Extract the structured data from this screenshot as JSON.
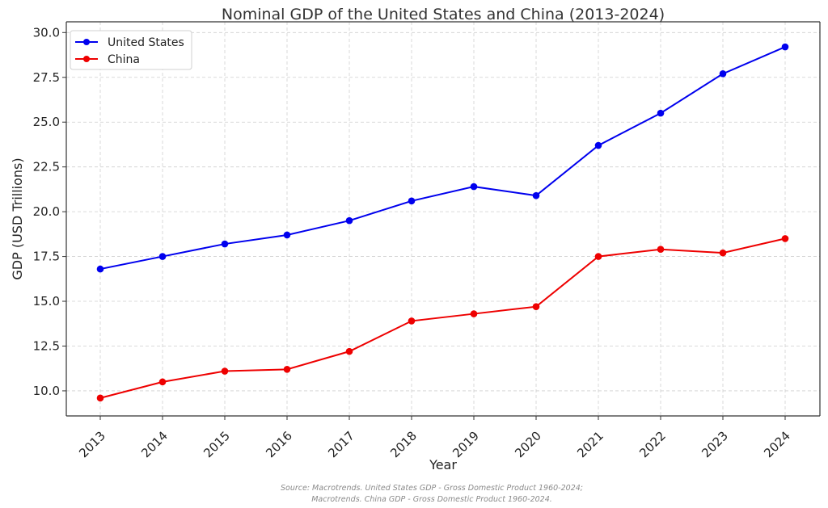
{
  "chart_data": {
    "type": "line",
    "title": "Nominal GDP of the United States and China (2013-2024)",
    "xlabel": "Year",
    "ylabel": "GDP (USD Trillions)",
    "x": [
      "2013",
      "2014",
      "2015",
      "2016",
      "2017",
      "2018",
      "2019",
      "2020",
      "2021",
      "2022",
      "2023",
      "2024"
    ],
    "yticks": [
      "10.0",
      "12.5",
      "15.0",
      "17.5",
      "20.0",
      "22.5",
      "25.0",
      "27.5",
      "30.0"
    ],
    "ylim": [
      8.6,
      30.6
    ],
    "grid": true,
    "legend_position": "top-left",
    "series": [
      {
        "name": "United States",
        "color": "#0000ee",
        "values": [
          16.8,
          17.5,
          18.2,
          18.7,
          19.5,
          20.6,
          21.4,
          20.9,
          23.7,
          25.5,
          27.7,
          29.2
        ]
      },
      {
        "name": "China",
        "color": "#ee0000",
        "values": [
          9.6,
          10.5,
          11.1,
          11.2,
          12.2,
          13.9,
          14.3,
          14.7,
          17.5,
          17.9,
          17.7,
          18.5
        ]
      }
    ]
  },
  "source_lines": [
    "Source: Macrotrends. United States GDP - Gross Domestic Product 1960-2024;",
    "Macrotrends. China GDP - Gross Domestic Product 1960-2024."
  ]
}
